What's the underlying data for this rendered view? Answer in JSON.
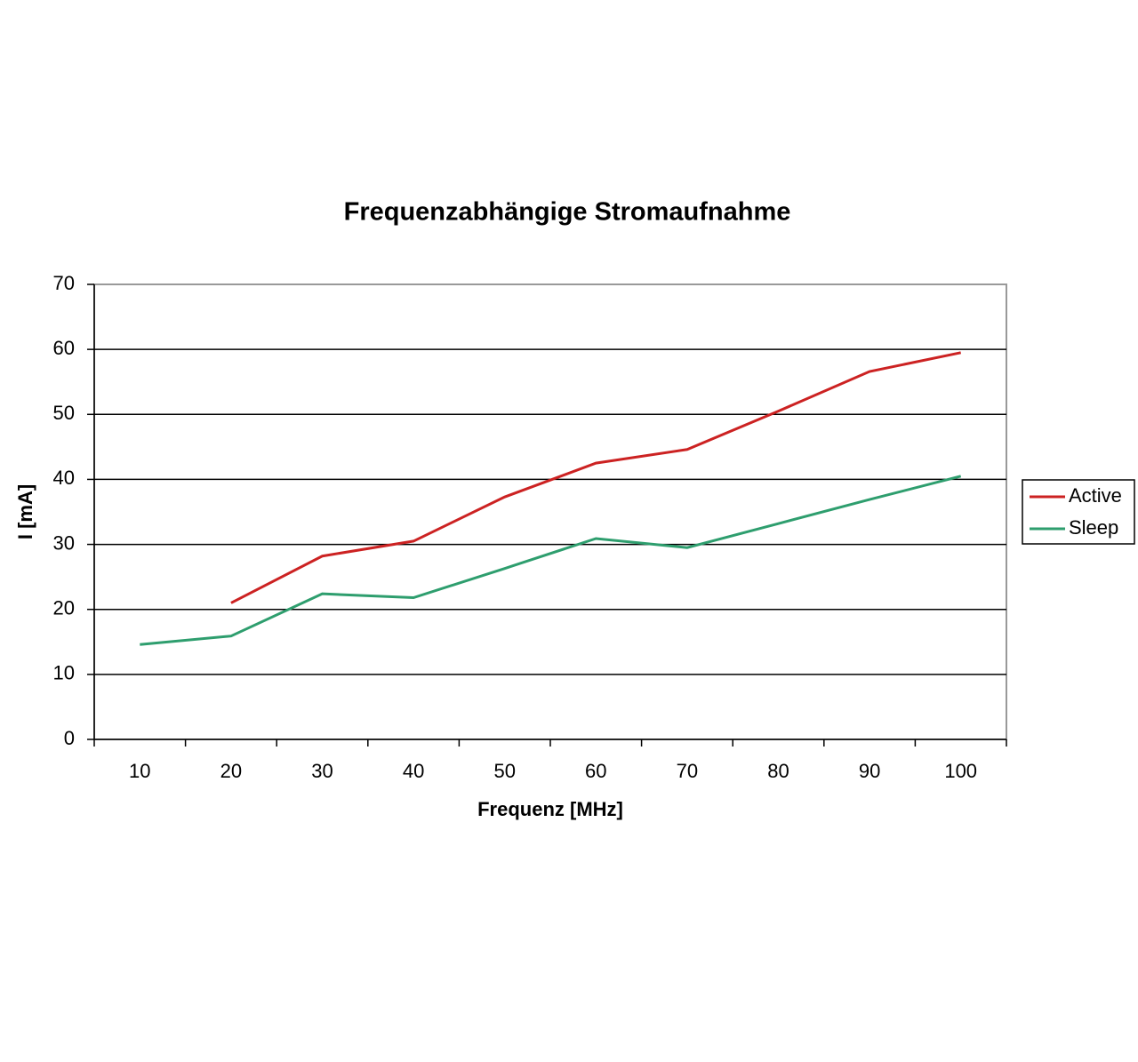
{
  "chart_data": {
    "type": "line",
    "title": "Frequenzabhängige Stromaufnahme",
    "x_label": "Frequenz [MHz]",
    "y_label": "I [mA]",
    "categories": [
      "10",
      "20",
      "30",
      "40",
      "50",
      "60",
      "70",
      "80",
      "90",
      "100"
    ],
    "series": [
      {
        "name": "Active",
        "color": "#cc2222",
        "values": [
          null,
          21,
          28.2,
          30.5,
          37.3,
          42.5,
          44.6,
          50.5,
          56.6,
          59.5
        ]
      },
      {
        "name": "Sleep",
        "color": "#2e9e6e",
        "values": [
          14.6,
          15.9,
          22.4,
          21.8,
          26.3,
          30.9,
          29.5,
          33.2,
          36.9,
          40.5
        ]
      }
    ],
    "ylim": [
      0,
      70
    ],
    "yticks": [
      0,
      10,
      20,
      30,
      40,
      50,
      60,
      70
    ],
    "grid": true,
    "legend": "right"
  }
}
